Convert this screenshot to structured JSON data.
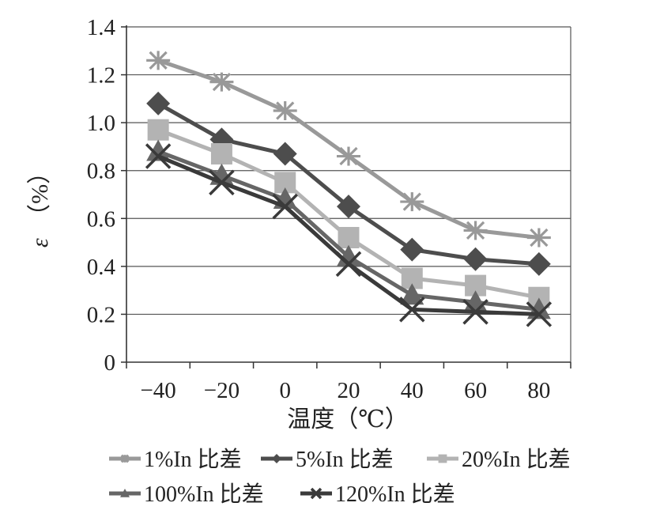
{
  "chart_data": {
    "type": "line",
    "title": "",
    "xlabel": "温度（℃）",
    "ylabel_symbol": "ε",
    "ylabel_unit": "（%）",
    "x": [
      -40,
      -20,
      0,
      20,
      40,
      60,
      80
    ],
    "x_tick_labels": [
      "−40",
      "−20",
      "0",
      "20",
      "40",
      "60",
      "80"
    ],
    "ylim": [
      0,
      1.4
    ],
    "y_ticks": [
      0,
      0.2,
      0.4,
      0.6,
      0.8,
      1.0,
      1.2,
      1.4
    ],
    "y_tick_labels": [
      "0",
      "0.2",
      "0.4",
      "0.6",
      "0.8",
      "1.0",
      "1.2",
      "1.4"
    ],
    "grid": "horizontal",
    "legend_position": "bottom",
    "series": [
      {
        "name": "1%In 比差",
        "values": [
          1.26,
          1.17,
          1.05,
          0.86,
          0.67,
          0.55,
          0.52
        ],
        "color": "#999999",
        "marker": "star"
      },
      {
        "name": "5%In 比差",
        "values": [
          1.08,
          0.93,
          0.87,
          0.65,
          0.47,
          0.43,
          0.41
        ],
        "color": "#4d4d4d",
        "marker": "diamond"
      },
      {
        "name": "20%In 比差",
        "values": [
          0.97,
          0.87,
          0.75,
          0.52,
          0.35,
          0.32,
          0.27
        ],
        "color": "#b3b3b3",
        "marker": "square"
      },
      {
        "name": "100%In 比差",
        "values": [
          0.88,
          0.78,
          0.68,
          0.44,
          0.28,
          0.25,
          0.22
        ],
        "color": "#666666",
        "marker": "triangle"
      },
      {
        "name": "120%In 比差",
        "values": [
          0.86,
          0.75,
          0.65,
          0.41,
          0.22,
          0.21,
          0.2
        ],
        "color": "#3a3a3a",
        "marker": "x"
      }
    ]
  }
}
